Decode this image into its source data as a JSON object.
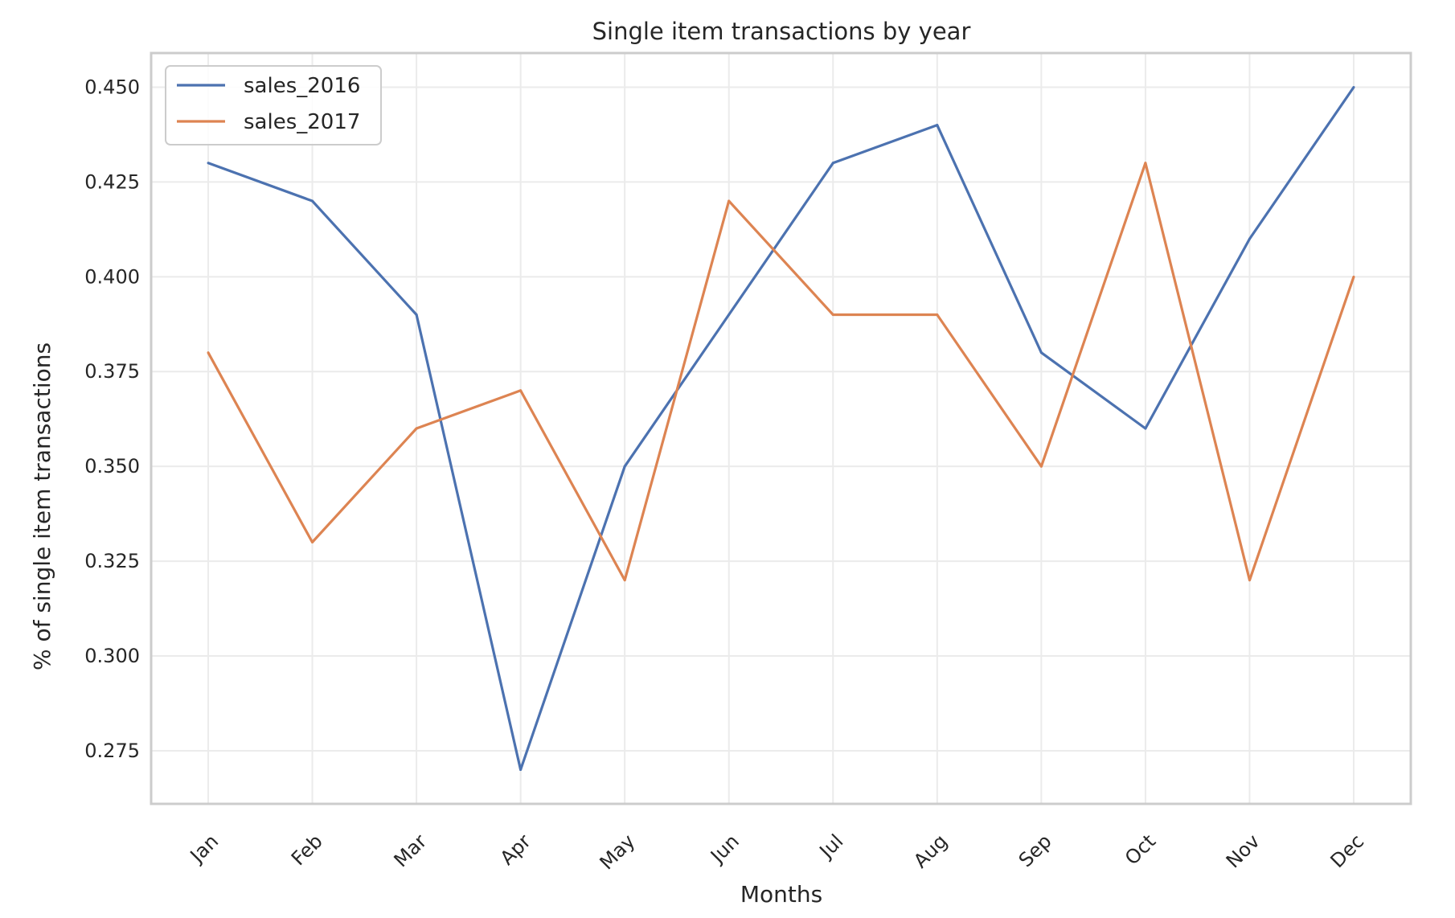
{
  "chart_data": {
    "type": "line",
    "title": "Single item transactions by year",
    "xlabel": "Months",
    "ylabel": "% of single item transactions",
    "categories": [
      "Jan",
      "Feb",
      "Mar",
      "Apr",
      "May",
      "Jun",
      "Jul",
      "Aug",
      "Sep",
      "Oct",
      "Nov",
      "Dec"
    ],
    "yticks": [
      "0.275",
      "0.300",
      "0.325",
      "0.350",
      "0.375",
      "0.400",
      "0.425",
      "0.450"
    ],
    "ylim": [
      0.261,
      0.459
    ],
    "grid": true,
    "legend_position": "top-left",
    "series": [
      {
        "name": "sales_2016",
        "color": "#4c72b0",
        "values": [
          0.43,
          0.42,
          0.39,
          0.27,
          0.35,
          0.39,
          0.43,
          0.44,
          0.38,
          0.36,
          0.41,
          0.45
        ]
      },
      {
        "name": "sales_2017",
        "color": "#dd8452",
        "values": [
          0.38,
          0.33,
          0.36,
          0.37,
          0.32,
          0.42,
          0.39,
          0.39,
          0.35,
          0.43,
          0.32,
          0.4
        ]
      }
    ]
  }
}
